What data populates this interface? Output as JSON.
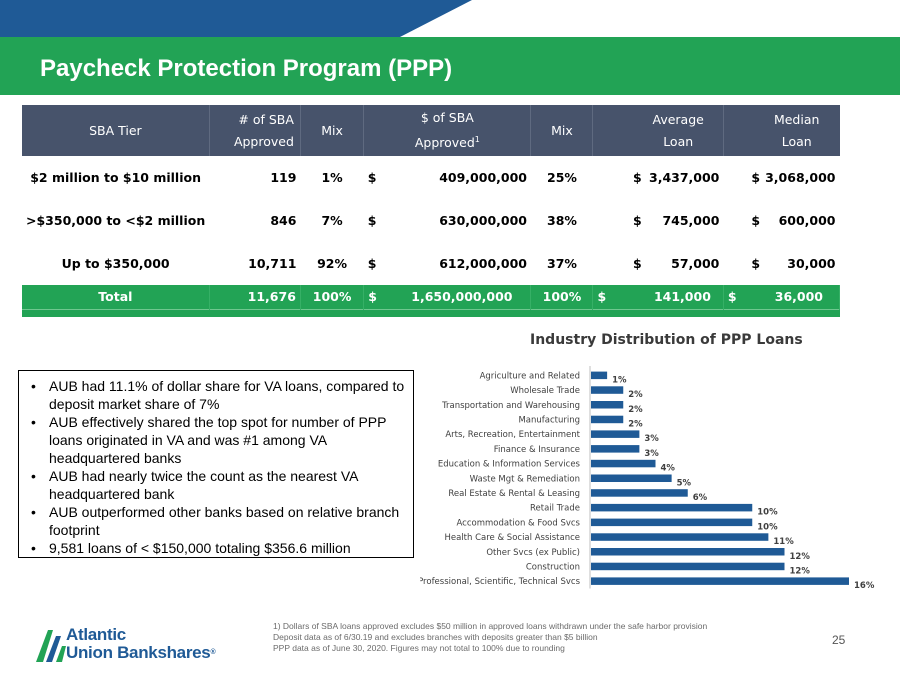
{
  "slide": {
    "title": "Paycheck Protection Program (PPP)",
    "page_number": "25"
  },
  "table": {
    "headers": {
      "tier": "SBA Tier",
      "num_line1": "# of SBA",
      "num_line2": "Approved",
      "mix": "Mix",
      "dollar_line1": "$ of SBA",
      "dollar_line2": "Approved",
      "dollar_sup": "1",
      "mix2": "Mix",
      "avg_line1": "Average",
      "avg_line2": "Loan",
      "med_line1": "Median",
      "med_line2": "Loan"
    },
    "rows": [
      {
        "tier": "$2 million to $10 million",
        "count": "119",
        "mix": "1%",
        "dollars": "409,000,000",
        "dollar_mix": "25%",
        "avg": "3,437,000",
        "median": "3,068,000"
      },
      {
        "tier": ">$350,000 to <$2 million",
        "count": "846",
        "mix": "7%",
        "dollars": "630,000,000",
        "dollar_mix": "38%",
        "avg": "745,000",
        "median": "600,000"
      },
      {
        "tier": "Up to $350,000",
        "count": "10,711",
        "mix": "92%",
        "dollars": "612,000,000",
        "dollar_mix": "37%",
        "avg": "57,000",
        "median": "30,000"
      }
    ],
    "total": {
      "tier": "Total",
      "count": "11,676",
      "mix": "100%",
      "dollars": "1,650,000,000",
      "dollar_mix": "100%",
      "avg": "141,000",
      "median": "36,000"
    },
    "currency": "$"
  },
  "chart_data": {
    "type": "bar",
    "orientation": "horizontal",
    "title": "Industry  Distribution of PPP Loans",
    "categories": [
      "Agriculture and Related",
      "Wholesale Trade",
      "Transportation and Warehousing",
      "Manufacturing",
      "Arts, Recreation, Entertainment",
      "Finance & Insurance",
      "Education & Information Services",
      "Waste Mgt & Remediation",
      "Real Estate & Rental & Leasing",
      "Retail Trade",
      "Accommodation & Food Svcs",
      "Health Care & Social Assistance",
      "Other Svcs (ex Public)",
      "Construction",
      "Professional, Scientific, Technical Svcs"
    ],
    "values": [
      1,
      2,
      2,
      2,
      3,
      3,
      4,
      5,
      6,
      10,
      10,
      11,
      12,
      12,
      16
    ],
    "labels": [
      "1%",
      "2%",
      "2%",
      "2%",
      "3%",
      "3%",
      "4%",
      "5%",
      "6%",
      "10%",
      "10%",
      "11%",
      "12%",
      "12%",
      "16%"
    ],
    "units": "%",
    "bar_color": "#1f5a96",
    "grid": false,
    "legend": "none"
  },
  "bullets": [
    "AUB had 11.1% of dollar share for VA loans, compared to deposit market share of 7%",
    "AUB effectively shared the top spot for number of PPP loans originated in VA and was #1 among VA headquartered banks",
    "AUB had nearly twice the count as the nearest VA headquartered bank",
    "AUB outperformed other banks based on relative branch footprint",
    "9,581 loans of < $150,000 totaling $356.6 million"
  ],
  "footnotes": [
    "1) Dollars of SBA loans approved  excludes $50 million in approved loans withdrawn under the safe harbor provision",
    "Deposit data as of 6/30.19 and excludes branches with deposits greater than $5 billion",
    "PPP data as of June 30, 2020. Figures may not total to 100% due to rounding"
  ],
  "logo": {
    "line1": "Atlantic",
    "line2": "Union Bankshares",
    "mark": "®",
    "brand_green": "#22a355",
    "brand_blue": "#1f5a96"
  },
  "colors": {
    "header_blue": "#1f5a96",
    "title_green": "#22a355",
    "table_header": "#47536b"
  }
}
